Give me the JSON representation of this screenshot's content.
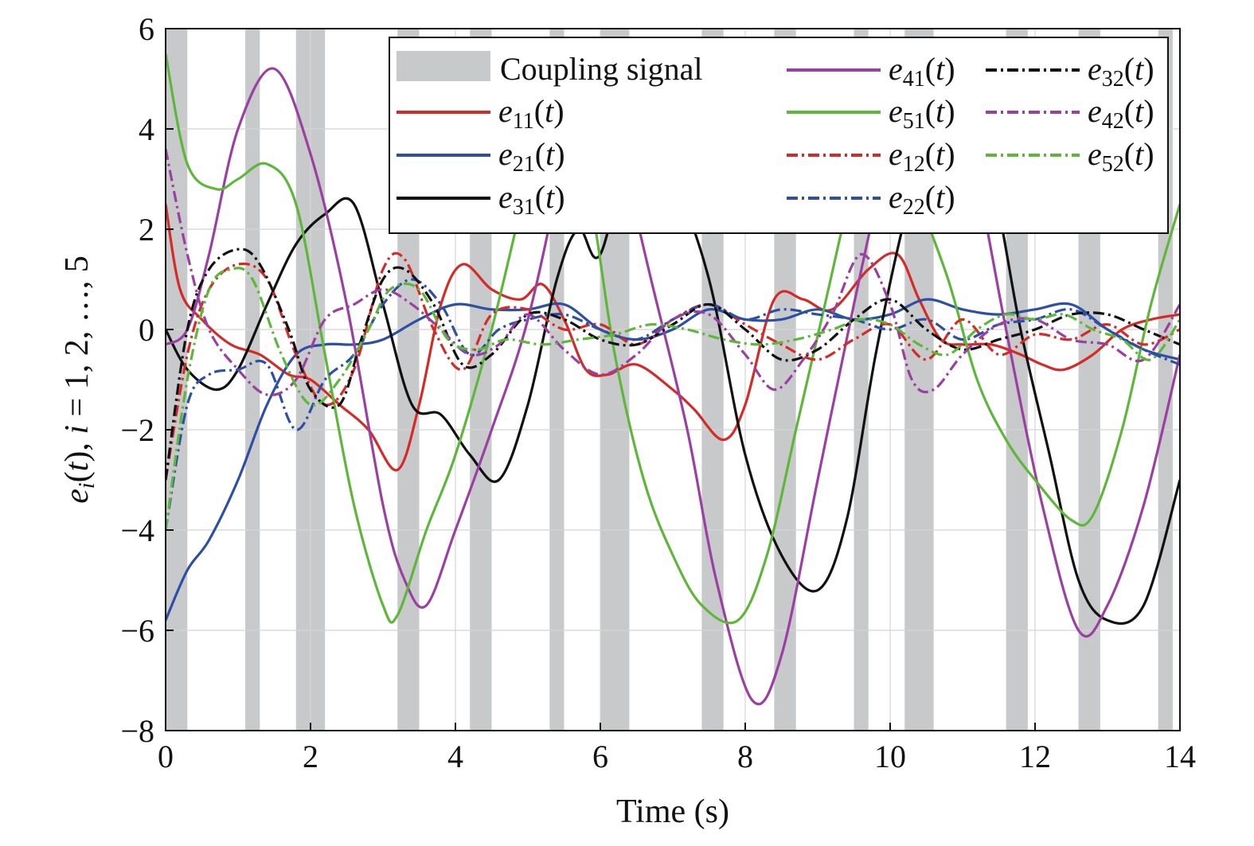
{
  "chart_data": {
    "type": "line",
    "xlabel": "Time (s)",
    "ylabel": "e_i(t), i = 1, 2, …, 5",
    "xlim": [
      0,
      14
    ],
    "ylim": [
      -8,
      6
    ],
    "x_ticks": [
      0,
      2,
      4,
      6,
      8,
      10,
      12,
      14
    ],
    "y_ticks": [
      6,
      4,
      2,
      0,
      -2,
      -4,
      -6,
      -8
    ],
    "y_tick_labels": [
      "6",
      "4",
      "2",
      "0",
      "−2",
      "−4",
      "−6",
      "−8"
    ],
    "grid": true,
    "legend_position": "top-right",
    "shaded_label": "Coupling signal",
    "shaded_intervals": [
      [
        0,
        0.3
      ],
      [
        1.1,
        1.3
      ],
      [
        1.8,
        2.2
      ],
      [
        3.2,
        3.5
      ],
      [
        4.2,
        4.5
      ],
      [
        5.3,
        5.5
      ],
      [
        6.0,
        6.4
      ],
      [
        7.4,
        7.7
      ],
      [
        8.4,
        8.7
      ],
      [
        9.5,
        9.7
      ],
      [
        10.2,
        10.6
      ],
      [
        11.6,
        11.9
      ],
      [
        12.6,
        12.9
      ],
      [
        13.7,
        13.9
      ]
    ],
    "legend": [
      {
        "key": "coupling",
        "sub": "",
        "color": "#c8c9cb",
        "dash": "band"
      },
      {
        "key": "e",
        "sub": "11",
        "color": "#d62a27",
        "dash": "solid"
      },
      {
        "key": "e",
        "sub": "21",
        "color": "#2d4fa5",
        "dash": "solid"
      },
      {
        "key": "e",
        "sub": "31",
        "color": "#111111",
        "dash": "solid"
      },
      {
        "key": "e",
        "sub": "41",
        "color": "#9b3fa3",
        "dash": "solid"
      },
      {
        "key": "e",
        "sub": "51",
        "color": "#5db83a",
        "dash": "solid"
      },
      {
        "key": "e",
        "sub": "12",
        "color": "#d62a27",
        "dash": "dashdot"
      },
      {
        "key": "e",
        "sub": "22",
        "color": "#2d4fa5",
        "dash": "dashdot"
      },
      {
        "key": "e",
        "sub": "32",
        "color": "#111111",
        "dash": "dashdot"
      },
      {
        "key": "e",
        "sub": "42",
        "color": "#9b3fa3",
        "dash": "dashdot"
      },
      {
        "key": "e",
        "sub": "52",
        "color": "#5db83a",
        "dash": "dashdot"
      }
    ],
    "series": [
      {
        "name": "e11(t)",
        "color": "#d62a27",
        "dash": "solid",
        "x": [
          0,
          0.2,
          0.5,
          0.9,
          1.3,
          1.7,
          2.0,
          2.4,
          2.8,
          3.2,
          3.5,
          3.8,
          4.1,
          4.5,
          4.9,
          5.2,
          5.5,
          5.8,
          6.1,
          6.5,
          7.0,
          7.3,
          7.7,
          8.0,
          8.4,
          8.8,
          9.2,
          9.7,
          10.1,
          10.4,
          10.7,
          11.0,
          11.4,
          11.8,
          12.1,
          12.4,
          12.8,
          13.2,
          13.6,
          14.0
        ],
        "y": [
          2.5,
          0.8,
          0.2,
          -0.3,
          -0.5,
          -0.9,
          -1.0,
          -1.5,
          -2.0,
          -2.8,
          -1.5,
          0.5,
          1.3,
          0.8,
          0.6,
          0.9,
          0.2,
          -0.8,
          -0.9,
          -0.7,
          -1.2,
          -1.6,
          -2.2,
          -1.5,
          0.6,
          0.6,
          0.4,
          1.2,
          1.5,
          0.6,
          -0.2,
          -0.3,
          -0.3,
          -0.5,
          -0.7,
          -0.8,
          -0.5,
          0.0,
          0.2,
          0.3
        ]
      },
      {
        "name": "e21(t)",
        "color": "#2d4fa5",
        "dash": "solid",
        "x": [
          0,
          0.3,
          0.6,
          1.0,
          1.4,
          1.8,
          2.2,
          2.6,
          3.0,
          3.5,
          4.0,
          4.5,
          5.0,
          5.5,
          6.0,
          6.5,
          7.0,
          7.5,
          8.0,
          8.5,
          9.0,
          9.5,
          10.0,
          10.5,
          11.0,
          11.5,
          12.0,
          12.5,
          13.0,
          13.5,
          14.0
        ],
        "y": [
          -5.8,
          -4.8,
          -4.2,
          -3.0,
          -1.5,
          -0.5,
          -0.3,
          -0.3,
          -0.2,
          0.2,
          0.5,
          0.4,
          0.4,
          0.5,
          0.0,
          -0.2,
          0.0,
          0.4,
          0.2,
          0.2,
          0.4,
          0.2,
          0.3,
          0.6,
          0.4,
          0.3,
          0.4,
          0.5,
          0.0,
          -0.4,
          -0.6
        ]
      },
      {
        "name": "e31(t)",
        "color": "#111111",
        "dash": "solid",
        "x": [
          0,
          0.3,
          0.7,
          1.0,
          1.4,
          1.8,
          2.2,
          2.6,
          3.0,
          3.4,
          3.8,
          4.2,
          4.6,
          5.0,
          5.4,
          5.7,
          6.0,
          6.5,
          7.0,
          7.5,
          8.0,
          8.5,
          9.0,
          9.4,
          9.8,
          10.2,
          10.6,
          11.0,
          11.4,
          11.8,
          12.2,
          12.6,
          13.0,
          13.5,
          14.0
        ],
        "y": [
          0.0,
          -0.8,
          -1.2,
          -0.8,
          0.5,
          1.7,
          2.3,
          2.5,
          0.5,
          -1.5,
          -1.7,
          -2.5,
          -3.0,
          -1.5,
          1.0,
          2.0,
          1.5,
          4.0,
          3.0,
          1.0,
          -2.5,
          -4.5,
          -5.2,
          -3.8,
          -0.5,
          2.2,
          4.2,
          4.0,
          3.0,
          0.0,
          -2.5,
          -5.0,
          -5.8,
          -5.5,
          -3.0
        ]
      },
      {
        "name": "e41(t)",
        "color": "#9b3fa3",
        "dash": "solid",
        "x": [
          0,
          0.3,
          0.6,
          1.0,
          1.5,
          2.0,
          2.5,
          3.0,
          3.3,
          3.6,
          4.0,
          4.5,
          5.0,
          5.5,
          5.8,
          6.2,
          6.7,
          7.2,
          7.6,
          8.1,
          8.5,
          9.0,
          9.5,
          9.9,
          10.4,
          10.8,
          11.2,
          11.6,
          12.1,
          12.6,
          13.0,
          13.5,
          14.0
        ],
        "y": [
          -0.3,
          0.0,
          1.5,
          4.0,
          5.2,
          3.5,
          0.5,
          -3.5,
          -5.0,
          -5.5,
          -4.0,
          -2.0,
          0.2,
          3.5,
          5.8,
          4.0,
          1.0,
          -2.0,
          -5.0,
          -7.4,
          -6.5,
          -3.0,
          0.5,
          3.0,
          5.0,
          5.2,
          3.0,
          0.0,
          -3.5,
          -6.0,
          -5.5,
          -3.5,
          -0.5
        ]
      },
      {
        "name": "e51(t)",
        "color": "#5db83a",
        "dash": "solid",
        "x": [
          0,
          0.3,
          0.7,
          1.0,
          1.4,
          1.8,
          2.2,
          2.6,
          3.0,
          3.2,
          3.6,
          4.0,
          4.5,
          5.0,
          5.3,
          5.8,
          6.2,
          6.6,
          7.0,
          7.4,
          7.9,
          8.3,
          8.7,
          9.1,
          9.5,
          9.9,
          10.3,
          10.8,
          11.2,
          11.6,
          12.0,
          12.5,
          12.8,
          13.2,
          13.6,
          14.0
        ],
        "y": [
          5.5,
          3.3,
          2.8,
          3.0,
          3.3,
          2.5,
          -0.5,
          -3.5,
          -5.5,
          -5.7,
          -4.0,
          -2.5,
          0.0,
          3.0,
          4.5,
          3.0,
          -0.5,
          -3.0,
          -4.5,
          -5.5,
          -5.8,
          -4.5,
          -2.0,
          0.5,
          3.0,
          5.0,
          3.0,
          1.0,
          -1.0,
          -2.2,
          -3.0,
          -3.8,
          -3.7,
          -2.0,
          0.5,
          2.5
        ]
      },
      {
        "name": "e12(t)",
        "color": "#d62a27",
        "dash": "dashdot",
        "x": [
          0,
          0.3,
          0.6,
          1.0,
          1.4,
          1.8,
          2.2,
          2.6,
          3.0,
          3.3,
          3.7,
          4.1,
          4.5,
          5.0,
          5.5,
          6.0,
          6.5,
          7.0,
          7.5,
          8.0,
          8.5,
          9.0,
          9.5,
          10.0,
          10.5,
          11.0,
          11.5,
          12.0,
          12.5,
          13.0,
          13.5,
          14.0
        ],
        "y": [
          -3.0,
          -0.5,
          0.8,
          1.3,
          1.0,
          -0.5,
          -1.5,
          -0.8,
          1.2,
          1.4,
          0.0,
          -0.8,
          0.3,
          0.4,
          0.0,
          0.1,
          -0.3,
          0.2,
          0.5,
          0.1,
          -0.3,
          -0.6,
          -0.2,
          0.1,
          -0.6,
          0.2,
          -0.5,
          -0.1,
          -0.2,
          0.1,
          -0.3,
          0.0
        ]
      },
      {
        "name": "e22(t)",
        "color": "#2d4fa5",
        "dash": "dashdot",
        "x": [
          0,
          0.3,
          0.6,
          1.0,
          1.4,
          1.8,
          2.2,
          2.6,
          3.0,
          3.4,
          3.8,
          4.2,
          4.6,
          5.0,
          5.5,
          6.0,
          6.5,
          7.0,
          7.5,
          8.0,
          8.5,
          9.0,
          9.5,
          10.0,
          10.5,
          11.0,
          11.5,
          12.0,
          12.5,
          13.0,
          13.5,
          14.0
        ],
        "y": [
          -4.0,
          -1.5,
          -0.9,
          -0.8,
          -0.7,
          -2.0,
          -1.0,
          -0.5,
          0.5,
          1.0,
          0.5,
          -0.5,
          0.0,
          0.2,
          0.3,
          0.0,
          -0.2,
          0.2,
          0.5,
          0.2,
          0.4,
          0.3,
          0.2,
          0.0,
          0.2,
          -0.2,
          0.1,
          0.2,
          0.4,
          0.0,
          -0.4,
          -0.7
        ]
      },
      {
        "name": "e32(t)",
        "color": "#111111",
        "dash": "dashdot",
        "x": [
          0,
          0.3,
          0.6,
          1.0,
          1.3,
          1.7,
          2.0,
          2.4,
          2.7,
          3.0,
          3.3,
          3.7,
          4.1,
          4.5,
          5.0,
          5.5,
          6.0,
          6.5,
          7.0,
          7.5,
          8.0,
          8.5,
          9.0,
          9.5,
          10.0,
          10.5,
          11.0,
          11.5,
          12.0,
          12.5,
          13.0,
          13.5,
          14.0
        ],
        "y": [
          -3.0,
          0.0,
          1.2,
          1.6,
          1.3,
          0.0,
          -1.2,
          -1.5,
          -0.2,
          1.0,
          1.2,
          0.5,
          -0.7,
          -0.5,
          0.3,
          0.2,
          -0.2,
          -0.3,
          0.1,
          0.5,
          0.0,
          -0.6,
          -0.4,
          0.2,
          0.6,
          0.0,
          -0.4,
          -0.2,
          0.0,
          0.3,
          0.3,
          0.0,
          -0.3
        ]
      },
      {
        "name": "e42(t)",
        "color": "#9b3fa3",
        "dash": "dashdot",
        "x": [
          0,
          0.3,
          0.6,
          1.0,
          1.4,
          1.8,
          2.2,
          2.6,
          3.0,
          3.4,
          3.8,
          4.2,
          4.6,
          5.0,
          5.5,
          6.0,
          6.5,
          7.0,
          7.5,
          8.0,
          8.4,
          8.8,
          9.2,
          9.6,
          10.0,
          10.3,
          10.6,
          11.0,
          11.5,
          12.0,
          12.5,
          13.0,
          13.5,
          14.0
        ],
        "y": [
          3.6,
          1.5,
          0.0,
          -0.8,
          -1.3,
          -1.0,
          0.2,
          0.5,
          0.8,
          0.5,
          0.0,
          -0.5,
          -0.3,
          0.3,
          -0.4,
          -0.9,
          -0.5,
          0.2,
          0.3,
          -0.5,
          -1.2,
          -0.6,
          0.3,
          1.5,
          0.5,
          -1.0,
          -1.2,
          -0.5,
          0.1,
          0.2,
          -0.2,
          -0.3,
          -0.6,
          0.5
        ]
      },
      {
        "name": "e52(t)",
        "color": "#5db83a",
        "dash": "dashdot",
        "x": [
          0,
          0.3,
          0.6,
          0.9,
          1.2,
          1.6,
          2.0,
          2.4,
          2.8,
          3.1,
          3.5,
          3.9,
          4.3,
          4.7,
          5.2,
          5.7,
          6.2,
          6.7,
          7.2,
          7.7,
          8.2,
          8.7,
          9.2,
          9.6,
          10.0,
          10.4,
          10.8,
          11.2,
          11.6,
          12.0,
          12.4,
          12.8,
          13.2,
          13.6,
          14.0
        ],
        "y": [
          -4.0,
          -1.0,
          0.8,
          1.2,
          1.0,
          -0.5,
          -1.5,
          -1.0,
          0.0,
          0.8,
          0.8,
          -0.2,
          -0.4,
          -0.2,
          -0.3,
          -0.2,
          -0.1,
          0.1,
          0.0,
          -0.2,
          -0.3,
          -0.2,
          0.0,
          0.2,
          0.1,
          -0.3,
          -0.5,
          0.0,
          0.3,
          0.2,
          0.3,
          0.0,
          -0.2,
          -0.6,
          0.2
        ]
      }
    ]
  }
}
